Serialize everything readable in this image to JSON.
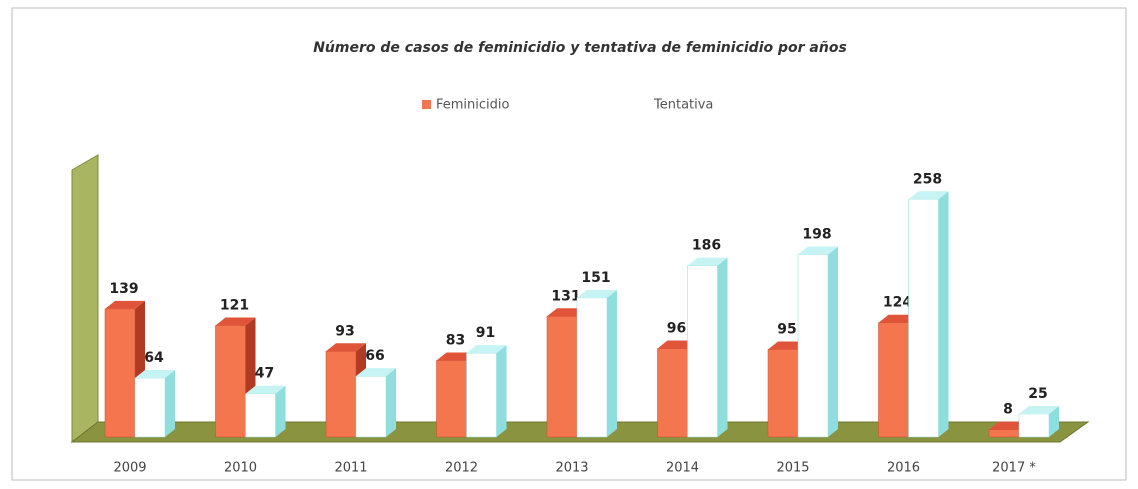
{
  "chart_data": {
    "type": "bar3d",
    "title": "Número de casos de feminicidio  y tentativa de feminicidio  por años",
    "categories": [
      "2009",
      "2010",
      "2011",
      "2012",
      "2013",
      "2014",
      "2015",
      "2016",
      "2017 *"
    ],
    "series": [
      {
        "name": "Feminicidio",
        "color": "#f4764f",
        "values": [
          139,
          121,
          93,
          83,
          131,
          96,
          95,
          124,
          8
        ]
      },
      {
        "name": "Tentativa",
        "color": "#ffffff",
        "values": [
          64,
          47,
          66,
          91,
          151,
          186,
          198,
          258,
          25
        ]
      }
    ],
    "ylim": [
      0,
      280
    ],
    "legend": "top"
  }
}
